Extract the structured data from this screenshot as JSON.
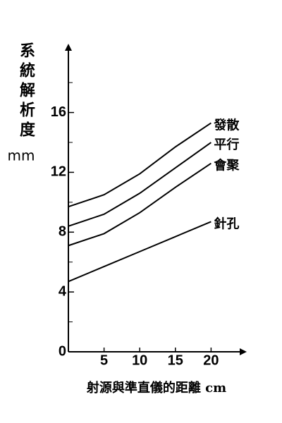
{
  "chart_data": {
    "type": "line",
    "y_label": "系統解析度",
    "y_unit": "mm",
    "x_label": "射源與準直儀的距離 cm",
    "x": [
      0,
      5,
      10,
      15,
      20
    ],
    "series": [
      {
        "name": "發散",
        "color": "#000000",
        "values": [
          9.7,
          10.5,
          11.9,
          13.7,
          15.3
        ]
      },
      {
        "name": "平行",
        "color": "#000000",
        "values": [
          8.4,
          9.2,
          10.6,
          12.3,
          14.0
        ]
      },
      {
        "name": "會聚",
        "color": "#000000",
        "values": [
          7.1,
          7.9,
          9.3,
          11.0,
          12.6
        ]
      },
      {
        "name": "針孔",
        "color": "#000000",
        "values": [
          4.7,
          5.7,
          6.7,
          7.7,
          8.7
        ]
      }
    ],
    "xlim": [
      0,
      25
    ],
    "ylim": [
      0,
      20.6
    ],
    "xticks": [
      5,
      10,
      15,
      20
    ],
    "yticks": [
      0,
      4,
      8,
      12,
      16
    ],
    "yminorticks": [
      2,
      6,
      10,
      14,
      18
    ],
    "grid": false
  }
}
